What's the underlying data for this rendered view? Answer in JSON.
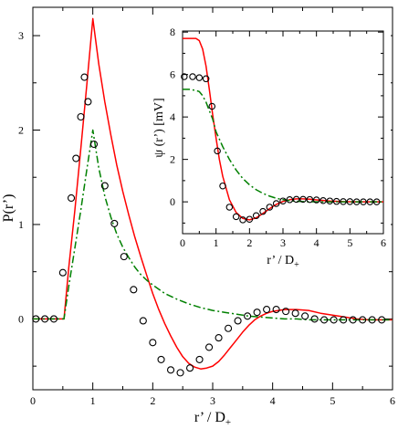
{
  "colors": {
    "red": "#ff0000",
    "green": "#008000",
    "black": "#000000"
  },
  "chart_data": [
    {
      "type": "line",
      "title": "",
      "xlabel": "r’ / D+",
      "xlabel_main": "r’ / D",
      "xlabel_sub": "+",
      "ylabel": "P(r’)",
      "xlim": [
        0,
        6
      ],
      "ylim": [
        -0.75,
        3.3
      ],
      "xticks": [
        "0",
        "1",
        "2",
        "3",
        "4",
        "5",
        "6"
      ],
      "yticks": [
        "0",
        "1",
        "2",
        "3"
      ],
      "grid": false,
      "legend": "none",
      "series": [
        {
          "style": "solid-red",
          "x": [
            0,
            0.1,
            0.2,
            0.3,
            0.4,
            0.5,
            0.52,
            0.6,
            0.7,
            0.8,
            0.9,
            1.0,
            1.1,
            1.2,
            1.3,
            1.4,
            1.5,
            1.6,
            1.7,
            1.8,
            1.9,
            2.0,
            2.1,
            2.2,
            2.3,
            2.4,
            2.5,
            2.6,
            2.7,
            2.8,
            2.9,
            3.0,
            3.1,
            3.2,
            3.3,
            3.4,
            3.5,
            3.6,
            3.7,
            3.8,
            3.9,
            4.0,
            4.2,
            4.4,
            4.6,
            4.8,
            5.0,
            5.2,
            5.4,
            5.6,
            5.8,
            6.0
          ],
          "y": [
            0,
            0,
            0,
            0,
            0,
            0,
            0,
            0.55,
            1.15,
            1.8,
            2.48,
            3.18,
            2.7,
            2.3,
            1.95,
            1.63,
            1.35,
            1.1,
            0.87,
            0.66,
            0.46,
            0.27,
            0.1,
            -0.05,
            -0.18,
            -0.3,
            -0.4,
            -0.47,
            -0.51,
            -0.53,
            -0.52,
            -0.5,
            -0.45,
            -0.38,
            -0.3,
            -0.22,
            -0.14,
            -0.07,
            -0.01,
            0.03,
            0.06,
            0.08,
            0.1,
            0.1,
            0.09,
            0.06,
            0.04,
            0.02,
            0.0,
            -0.01,
            -0.01,
            -0.01
          ]
        },
        {
          "style": "dashdot-green",
          "x": [
            0,
            0.1,
            0.2,
            0.3,
            0.4,
            0.5,
            0.52,
            0.6,
            0.7,
            0.8,
            0.9,
            1.0,
            1.1,
            1.2,
            1.3,
            1.4,
            1.5,
            1.6,
            1.7,
            1.8,
            1.9,
            2.0,
            2.2,
            2.4,
            2.6,
            2.8,
            3.0,
            3.2,
            3.4,
            3.6,
            3.8,
            4.0,
            4.2,
            4.4,
            4.6,
            4.8,
            5.0,
            5.5,
            6.0
          ],
          "y": [
            0,
            0,
            0,
            0,
            0,
            0,
            0,
            0.35,
            0.75,
            1.15,
            1.58,
            2.0,
            1.6,
            1.3,
            1.08,
            0.9,
            0.76,
            0.65,
            0.55,
            0.47,
            0.41,
            0.36,
            0.27,
            0.21,
            0.16,
            0.12,
            0.09,
            0.07,
            0.05,
            0.03,
            0.02,
            0.01,
            0.0,
            0.0,
            -0.01,
            -0.01,
            -0.01,
            -0.01,
            -0.01
          ]
        },
        {
          "style": "circles-black",
          "x": [
            0.05,
            0.2,
            0.35,
            0.5,
            0.64,
            0.72,
            0.8,
            0.86,
            0.92,
            1.02,
            1.2,
            1.36,
            1.52,
            1.68,
            1.84,
            2.0,
            2.14,
            2.3,
            2.46,
            2.62,
            2.78,
            2.94,
            3.1,
            3.26,
            3.42,
            3.58,
            3.74,
            3.9,
            4.06,
            4.22,
            4.38,
            4.54,
            4.7,
            4.86,
            5.02,
            5.18,
            5.34,
            5.5,
            5.66,
            5.82
          ],
          "y": [
            0,
            0,
            0,
            0.49,
            1.28,
            1.7,
            2.14,
            2.56,
            2.3,
            1.85,
            1.41,
            1.01,
            0.66,
            0.31,
            -0.02,
            -0.25,
            -0.43,
            -0.54,
            -0.57,
            -0.52,
            -0.43,
            -0.3,
            -0.2,
            -0.1,
            -0.02,
            0.03,
            0.07,
            0.1,
            0.1,
            0.08,
            0.06,
            0.03,
            0.0,
            -0.01,
            -0.01,
            -0.01,
            -0.01,
            -0.01,
            -0.01,
            -0.01
          ]
        }
      ]
    },
    {
      "type": "line",
      "title": "",
      "xlabel": "r’ / D+",
      "xlabel_main": "r’ / D",
      "xlabel_sub": "+",
      "ylabel": "ψ (r’) [mV]",
      "xlim": [
        0,
        6
      ],
      "ylim": [
        -1.5,
        8.05
      ],
      "xticks": [
        "0",
        "1",
        "2",
        "3",
        "4",
        "5",
        "6"
      ],
      "yticks": [
        "0",
        "2",
        "4",
        "6",
        "8"
      ],
      "grid": false,
      "legend": "none",
      "series": [
        {
          "style": "solid-red",
          "x": [
            0,
            0.2,
            0.4,
            0.5,
            0.6,
            0.7,
            0.8,
            0.9,
            1.0,
            1.1,
            1.2,
            1.4,
            1.6,
            1.8,
            2.0,
            2.2,
            2.4,
            2.6,
            2.8,
            3.0,
            3.2,
            3.4,
            3.6,
            3.8,
            4.0,
            4.4,
            4.8,
            5.2,
            5.6,
            6.0
          ],
          "y": [
            7.7,
            7.7,
            7.7,
            7.6,
            7.2,
            6.4,
            5.3,
            4.1,
            3.0,
            2.0,
            1.2,
            0.1,
            -0.5,
            -0.78,
            -0.85,
            -0.75,
            -0.55,
            -0.32,
            -0.12,
            0.02,
            0.1,
            0.14,
            0.14,
            0.12,
            0.09,
            0.04,
            0.01,
            0.0,
            0.0,
            0.0
          ]
        },
        {
          "style": "dashdot-green",
          "x": [
            0,
            0.2,
            0.4,
            0.5,
            0.6,
            0.7,
            0.8,
            0.9,
            1.0,
            1.2,
            1.4,
            1.6,
            1.8,
            2.0,
            2.2,
            2.4,
            2.6,
            2.8,
            3.0,
            3.3,
            3.6,
            4.0,
            4.5,
            5.0,
            5.5,
            6.0
          ],
          "y": [
            5.3,
            5.3,
            5.25,
            5.2,
            5.0,
            4.7,
            4.3,
            3.9,
            3.3,
            2.6,
            2.0,
            1.5,
            1.1,
            0.8,
            0.57,
            0.4,
            0.27,
            0.17,
            0.1,
            0.04,
            0.01,
            0.0,
            0.0,
            0.0,
            0.0,
            0.0
          ]
        },
        {
          "style": "circles-black",
          "x": [
            0.05,
            0.3,
            0.5,
            0.7,
            0.88,
            1.04,
            1.2,
            1.4,
            1.6,
            1.8,
            2.0,
            2.2,
            2.4,
            2.6,
            2.8,
            3.0,
            3.2,
            3.4,
            3.6,
            3.8,
            4.0,
            4.2,
            4.4,
            4.6,
            4.8,
            5.0,
            5.2,
            5.4,
            5.6,
            5.8
          ],
          "y": [
            5.9,
            5.9,
            5.85,
            5.8,
            4.5,
            2.4,
            0.75,
            -0.25,
            -0.7,
            -0.85,
            -0.82,
            -0.65,
            -0.45,
            -0.25,
            -0.08,
            0.04,
            0.1,
            0.12,
            0.12,
            0.11,
            0.09,
            0.06,
            0.04,
            0.02,
            0.01,
            0.01,
            0.0,
            0.0,
            0.0,
            0.0
          ]
        }
      ]
    }
  ]
}
